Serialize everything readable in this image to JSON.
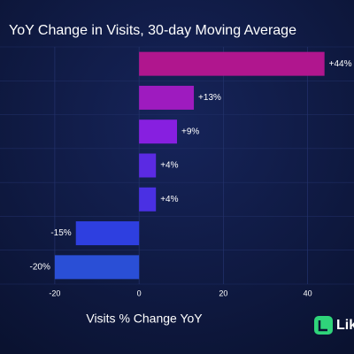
{
  "chart_data": {
    "type": "bar",
    "orientation": "horizontal",
    "title": "YoY Change in Visits, 30-day Moving Average",
    "x_label": "Visits % Change YoY",
    "categories": [
      null,
      null,
      null,
      null,
      null,
      null,
      null
    ],
    "values": [
      44,
      13,
      9,
      4,
      4,
      -15,
      -20
    ],
    "value_labels": [
      "+44%",
      "+13%",
      "+9%",
      "+4%",
      "+4%",
      "-15%",
      "-20%"
    ],
    "colors": [
      "#b0168e",
      "#9e1bbf",
      "#871fe0",
      "#5b2ae3",
      "#4a30e3",
      "#2e3fe0",
      "#2a4fd6"
    ],
    "xlim": [
      -33,
      51
    ],
    "xticks": [
      -20,
      0,
      20,
      40
    ],
    "grid": true
  },
  "logo": "Lik"
}
